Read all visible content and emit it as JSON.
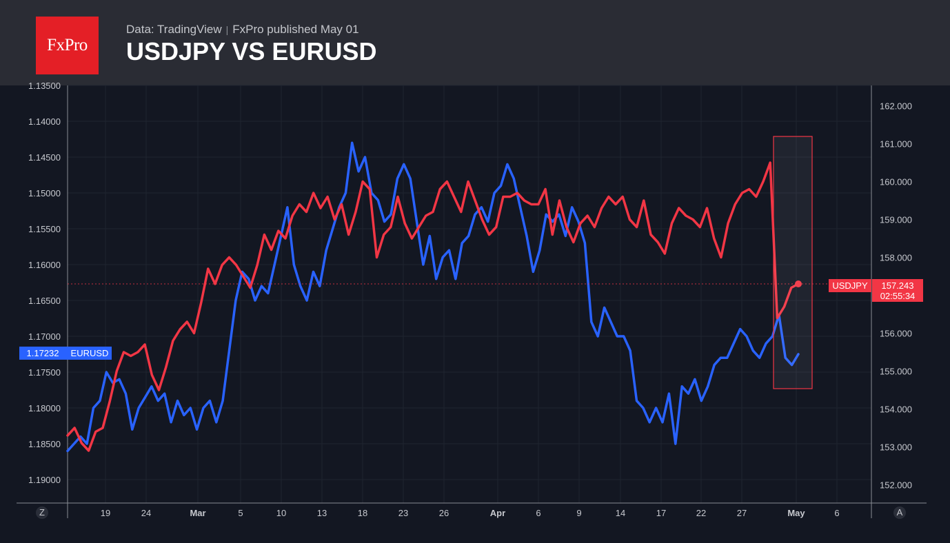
{
  "header": {
    "logo": "FxPro",
    "source": "Data: TradingView",
    "publisher": "FxPro published May 01",
    "title": "USDJPY VS EURUSD"
  },
  "chart_data": {
    "type": "line",
    "left_axis": {
      "series": "EURUSD",
      "inverted": true,
      "ticks": [
        "1.13500",
        "1.14000",
        "1.14500",
        "1.15000",
        "1.15500",
        "1.16000",
        "1.16500",
        "1.17000",
        "1.17500",
        "1.18000",
        "1.18500",
        "1.19000"
      ],
      "range": [
        1.135,
        1.1935
      ]
    },
    "right_axis": {
      "series": "USDJPY",
      "ticks": [
        "162.000",
        "161.000",
        "160.000",
        "159.000",
        "158.000",
        "157.000",
        "156.000",
        "155.000",
        "154.000",
        "153.000",
        "152.000"
      ],
      "range": [
        151.6,
        163.0
      ]
    },
    "x_ticks": [
      {
        "label": "19",
        "bold": false
      },
      {
        "label": "24",
        "bold": false
      },
      {
        "label": "Mar",
        "bold": true
      },
      {
        "label": "5",
        "bold": false
      },
      {
        "label": "10",
        "bold": false
      },
      {
        "label": "13",
        "bold": false
      },
      {
        "label": "18",
        "bold": false
      },
      {
        "label": "23",
        "bold": false
      },
      {
        "label": "26",
        "bold": false
      },
      {
        "label": "Apr",
        "bold": true
      },
      {
        "label": "6",
        "bold": false
      },
      {
        "label": "9",
        "bold": false
      },
      {
        "label": "14",
        "bold": false
      },
      {
        "label": "17",
        "bold": false
      },
      {
        "label": "22",
        "bold": false
      },
      {
        "label": "27",
        "bold": false
      },
      {
        "label": "May",
        "bold": true
      },
      {
        "label": "6",
        "bold": false
      }
    ],
    "corner_left": "Z",
    "corner_right": "A",
    "series": [
      {
        "name": "USDJPY",
        "color": "#f23645",
        "axis": "right",
        "values": [
          153.3,
          153.5,
          153.1,
          152.9,
          153.4,
          153.5,
          154.2,
          155.0,
          155.5,
          155.4,
          155.5,
          155.7,
          154.9,
          154.5,
          155.1,
          155.8,
          156.1,
          156.3,
          156.0,
          156.8,
          157.7,
          157.3,
          157.8,
          158.0,
          157.8,
          157.5,
          157.2,
          157.8,
          158.6,
          158.2,
          158.7,
          158.5,
          159.1,
          159.4,
          159.2,
          159.7,
          159.3,
          159.6,
          159.0,
          159.4,
          158.6,
          159.2,
          160.0,
          159.8,
          158.0,
          158.6,
          158.8,
          159.6,
          158.9,
          158.5,
          158.8,
          159.1,
          159.2,
          159.8,
          160.0,
          159.6,
          159.2,
          160.0,
          159.5,
          159.0,
          158.6,
          158.8,
          159.6,
          159.6,
          159.7,
          159.5,
          159.4,
          159.4,
          159.8,
          158.6,
          159.5,
          158.8,
          158.4,
          158.9,
          159.1,
          158.8,
          159.3,
          159.6,
          159.4,
          159.6,
          159.0,
          158.8,
          159.5,
          158.6,
          158.4,
          158.1,
          158.9,
          159.3,
          159.1,
          159.0,
          158.8,
          159.3,
          158.5,
          158.0,
          158.9,
          159.4,
          159.7,
          159.8,
          159.6,
          160.0,
          160.5,
          156.4,
          156.7,
          157.2,
          157.3
        ],
        "last_label": "157.243",
        "countdown": "02:55:34"
      },
      {
        "name": "EURUSD",
        "color": "#2962ff",
        "axis": "left",
        "values": [
          1.186,
          1.185,
          1.184,
          1.185,
          1.18,
          1.179,
          1.175,
          1.1765,
          1.176,
          1.178,
          1.183,
          1.18,
          1.1785,
          1.177,
          1.179,
          1.178,
          1.182,
          1.179,
          1.181,
          1.18,
          1.183,
          1.18,
          1.179,
          1.182,
          1.179,
          1.172,
          1.165,
          1.161,
          1.162,
          1.165,
          1.163,
          1.164,
          1.16,
          1.156,
          1.152,
          1.16,
          1.163,
          1.165,
          1.161,
          1.163,
          1.158,
          1.155,
          1.152,
          1.15,
          1.143,
          1.147,
          1.145,
          1.15,
          1.151,
          1.154,
          1.153,
          1.148,
          1.146,
          1.148,
          1.154,
          1.16,
          1.156,
          1.162,
          1.159,
          1.158,
          1.162,
          1.157,
          1.156,
          1.153,
          1.152,
          1.154,
          1.15,
          1.149,
          1.146,
          1.148,
          1.152,
          1.156,
          1.161,
          1.158,
          1.153,
          1.154,
          1.153,
          1.156,
          1.152,
          1.154,
          1.157,
          1.168,
          1.17,
          1.166,
          1.168,
          1.17,
          1.17,
          1.172,
          1.179,
          1.18,
          1.182,
          1.18,
          1.182,
          1.178,
          1.185,
          1.177,
          1.178,
          1.176,
          1.179,
          1.177,
          1.174,
          1.173,
          1.173,
          1.171,
          1.169,
          1.17,
          1.172,
          1.173,
          1.171,
          1.17,
          1.167,
          1.173,
          1.174,
          1.1725
        ],
        "last_label": "1.17232"
      }
    ],
    "highlight_box": {
      "color": "#f23645"
    }
  },
  "colors": {
    "usdjpy": "#f23645",
    "eurusd": "#2962ff",
    "background": "#131722",
    "header": "#2a2c34",
    "logo": "#e41f26"
  }
}
